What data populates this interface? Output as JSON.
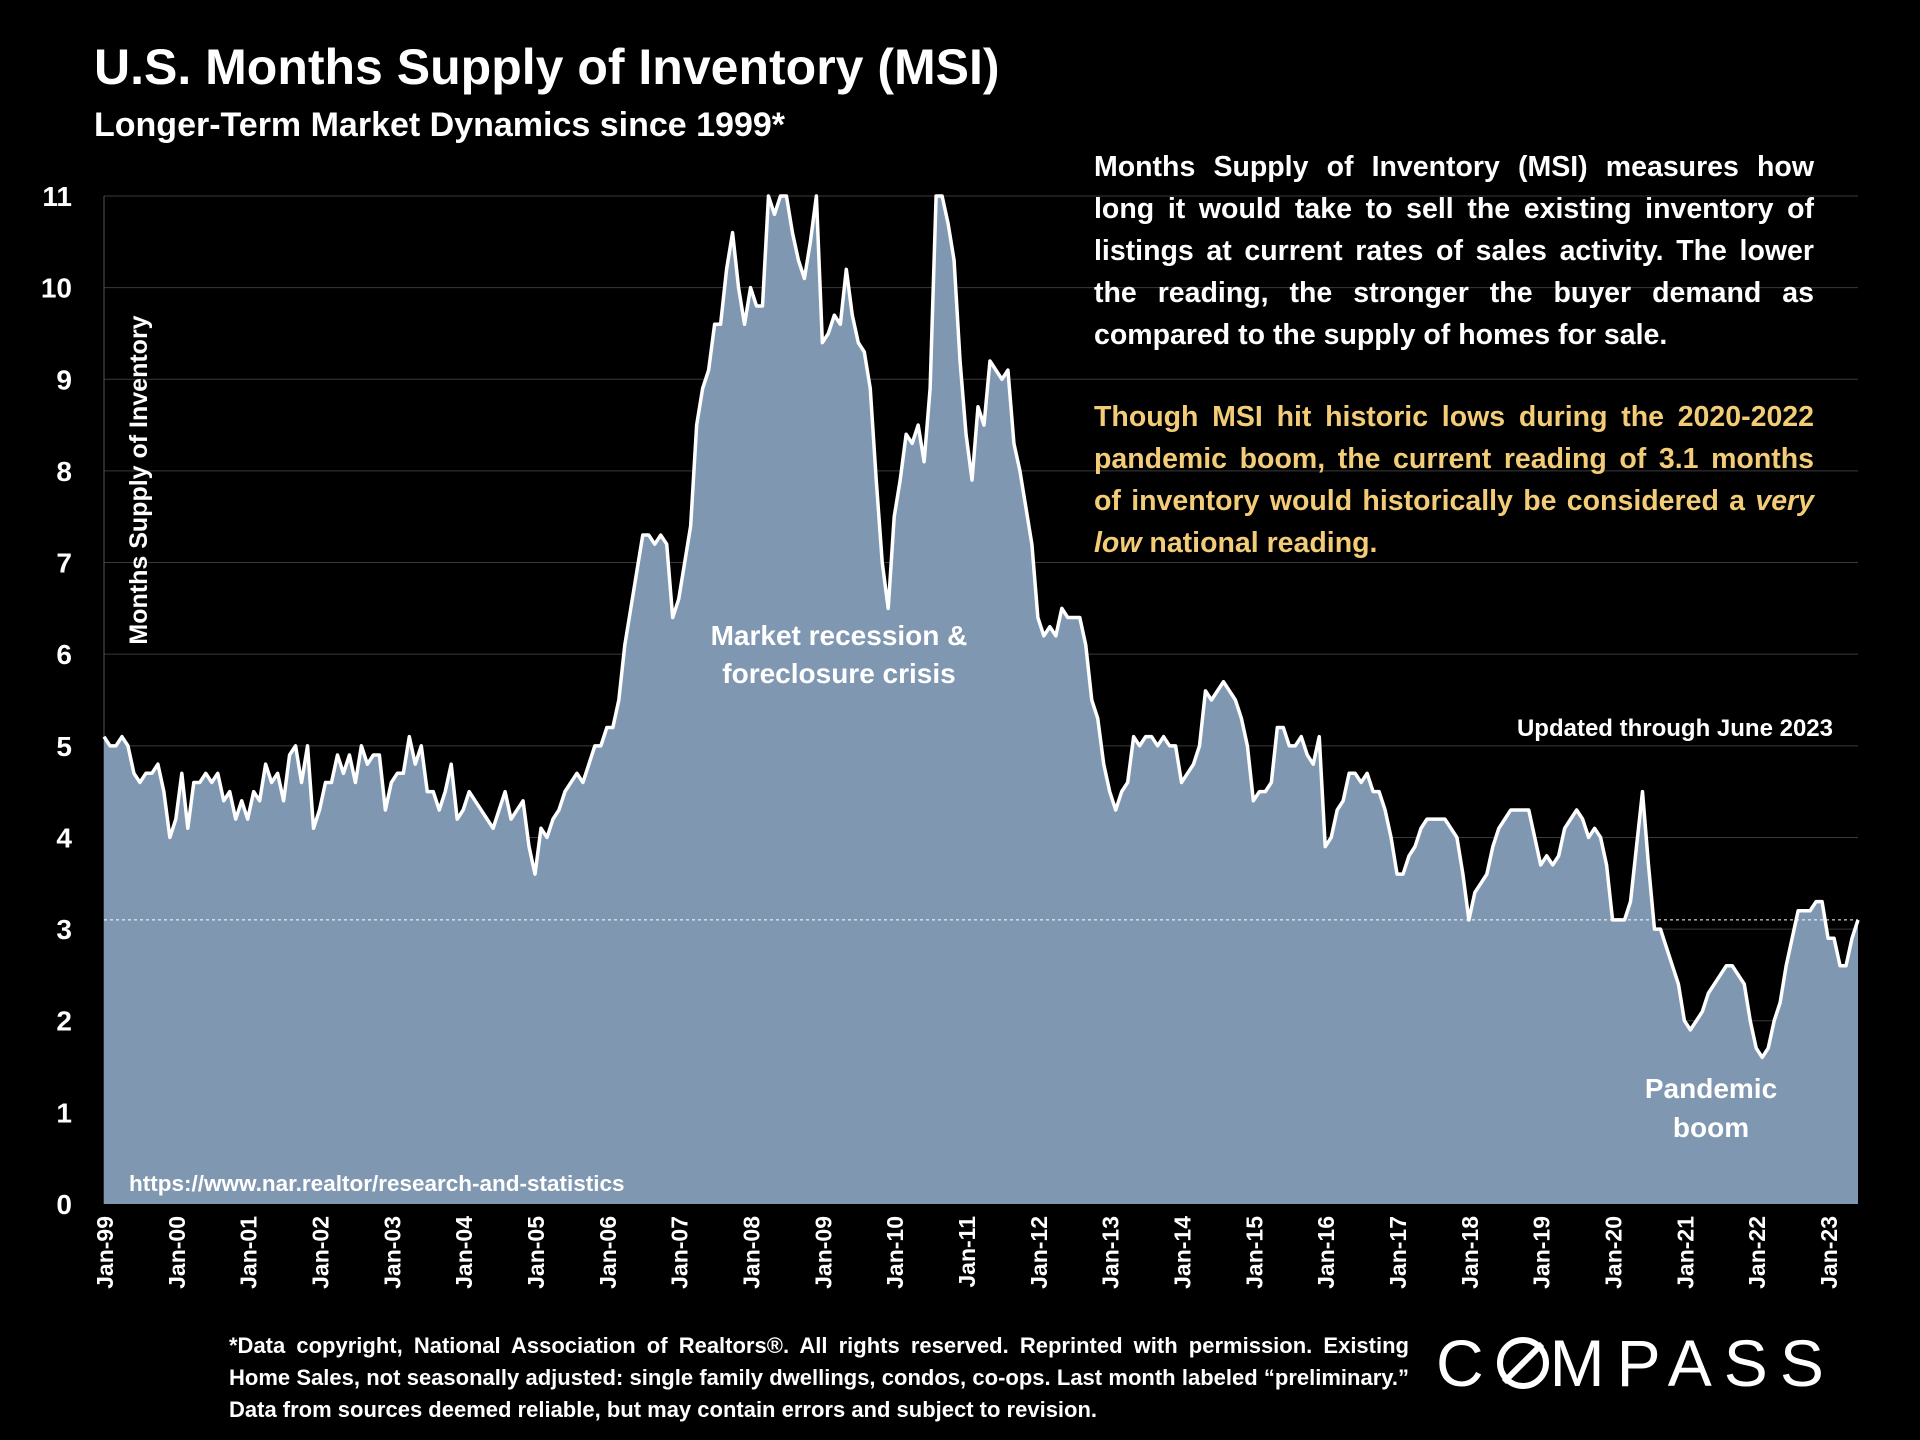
{
  "header": {
    "title": "U.S. Months Supply of Inventory (MSI)",
    "subtitle": "Longer-Term Market Dynamics since 1999*"
  },
  "info": {
    "paragraph1": "Months Supply of Inventory (MSI) measures how long it would take to sell the existing inventory of listings at current rates of sales activity. The lower the reading, the stronger the buyer demand as compared to the supply of homes for sale.",
    "paragraph2_before": "Though MSI hit historic lows during the 2020-2022 pandemic boom, the current reading of 3.1 months of inventory would historically be considered a ",
    "paragraph2_emphasis": "very low",
    "paragraph2_after": " national reading."
  },
  "footnote": "*Data copyright, National Association of Realtors®. All rights reserved. Reprinted with permission. Existing Home Sales, not seasonally adjusted:  single family dwellings, condos, co-ops. Last month labeled “preliminary.” Data from sources deemed reliable, but may contain errors and subject to revision.",
  "logo": {
    "text": "COMPASS",
    "icon": "compass-o-logo"
  },
  "colors": {
    "background": "#000000",
    "area_fill": "#7f97b1",
    "line": "#ffffff",
    "highlight_text": "#f2cc77",
    "gridline": "#3a3a3a"
  },
  "chart_data": {
    "type": "area",
    "title": "U.S. Months Supply of Inventory (MSI)",
    "ylabel": "Months Supply of Inventory",
    "ylim": [
      0,
      11
    ],
    "yticks": [
      "0",
      "1",
      "2",
      "3",
      "4",
      "5",
      "6",
      "7",
      "8",
      "9",
      "10",
      "11"
    ],
    "xticks": [
      "Jan-99",
      "Jan-00",
      "Jan-01",
      "Jan-02",
      "Jan-03",
      "Jan-04",
      "Jan-05",
      "Jan-06",
      "Jan-07",
      "Jan-08",
      "Jan-09",
      "Jan-10",
      "Jan-11",
      "Jan-12",
      "Jan-13",
      "Jan-14",
      "Jan-15",
      "Jan-16",
      "Jan-17",
      "Jan-18",
      "Jan-19",
      "Jan-20",
      "Jan-21",
      "Jan-22",
      "Jan-23"
    ],
    "start": "1999-01",
    "end": "2023-06",
    "reference_line": {
      "value": 3.1,
      "style": "dashed"
    },
    "annotations": {
      "recession": [
        "Market recession &",
        "foreclosure crisis"
      ],
      "pandemic": [
        "Pandemic",
        "boom"
      ],
      "updated": "Updated through June 2023",
      "source": "https://www.nar.realtor/research-and-statistics"
    },
    "series": [
      {
        "values": [
          5.1,
          5.0,
          5.0,
          5.1,
          5.0,
          4.7,
          4.6,
          4.7,
          4.7,
          4.8,
          4.5,
          4.0,
          4.2,
          4.7,
          4.1,
          4.6,
          4.6,
          4.7,
          4.6,
          4.7,
          4.4,
          4.5,
          4.2,
          4.4,
          4.2,
          4.5,
          4.4,
          4.8,
          4.6,
          4.7,
          4.4,
          4.9,
          5.0,
          4.6,
          5.0,
          4.1,
          4.3,
          4.6,
          4.6,
          4.9,
          4.7,
          4.9,
          4.6,
          5.0,
          4.8,
          4.9,
          4.9,
          4.3,
          4.6,
          4.7,
          4.7,
          5.1,
          4.8,
          5.0,
          4.5,
          4.5,
          4.3,
          4.5,
          4.8,
          4.2,
          4.3,
          4.5,
          4.4,
          4.3,
          4.2,
          4.1,
          4.3,
          4.5,
          4.2,
          4.3,
          4.4,
          3.9,
          3.6,
          4.1,
          4.0,
          4.2,
          4.3,
          4.5,
          4.6,
          4.7,
          4.6,
          4.8,
          5.0,
          5.0,
          5.2,
          5.2,
          5.5,
          6.1,
          6.5,
          6.9,
          7.3,
          7.3,
          7.2,
          7.3,
          7.2,
          6.4,
          6.6,
          7.0,
          7.4,
          8.5,
          8.9,
          9.1,
          9.6,
          9.6,
          10.2,
          10.6,
          10.0,
          9.6,
          10.0,
          9.8,
          9.8,
          11.0,
          10.8,
          11.0,
          11.0,
          10.6,
          10.3,
          10.1,
          10.5,
          11.0,
          9.4,
          9.5,
          9.7,
          9.6,
          10.2,
          9.7,
          9.4,
          9.3,
          8.9,
          7.9,
          7.0,
          6.5,
          7.5,
          7.9,
          8.4,
          8.3,
          8.5,
          8.1,
          8.9,
          11.0,
          11.0,
          10.7,
          10.3,
          9.2,
          8.4,
          7.9,
          8.7,
          8.5,
          9.2,
          9.1,
          9.0,
          9.1,
          8.3,
          8.0,
          7.6,
          7.2,
          6.4,
          6.2,
          6.3,
          6.2,
          6.5,
          6.4,
          6.4,
          6.4,
          6.1,
          5.5,
          5.3,
          4.8,
          4.5,
          4.3,
          4.5,
          4.6,
          5.1,
          5.0,
          5.1,
          5.1,
          5.0,
          5.1,
          5.0,
          5.0,
          4.6,
          4.7,
          4.8,
          5.0,
          5.6,
          5.5,
          5.6,
          5.7,
          5.6,
          5.5,
          5.3,
          5.0,
          4.4,
          4.5,
          4.5,
          4.6,
          5.2,
          5.2,
          5.0,
          5.0,
          5.1,
          4.9,
          4.8,
          5.1,
          3.9,
          4.0,
          4.3,
          4.4,
          4.7,
          4.7,
          4.6,
          4.7,
          4.5,
          4.5,
          4.3,
          4.0,
          3.6,
          3.6,
          3.8,
          3.9,
          4.1,
          4.2,
          4.2,
          4.2,
          4.2,
          4.1,
          4.0,
          3.6,
          3.1,
          3.4,
          3.5,
          3.6,
          3.9,
          4.1,
          4.2,
          4.3,
          4.3,
          4.3,
          4.3,
          4.0,
          3.7,
          3.8,
          3.7,
          3.8,
          4.1,
          4.2,
          4.3,
          4.2,
          4.0,
          4.1,
          4.0,
          3.7,
          3.1,
          3.1,
          3.1,
          3.3,
          3.9,
          4.5,
          3.7,
          3.0,
          3.0,
          2.8,
          2.6,
          2.4,
          2.0,
          1.9,
          2.0,
          2.1,
          2.3,
          2.4,
          2.5,
          2.6,
          2.6,
          2.5,
          2.4,
          2.0,
          1.7,
          1.6,
          1.7,
          2.0,
          2.2,
          2.6,
          2.9,
          3.2,
          3.2,
          3.2,
          3.3,
          3.3,
          2.9,
          2.9,
          2.6,
          2.6,
          2.9,
          3.1
        ]
      }
    ]
  }
}
